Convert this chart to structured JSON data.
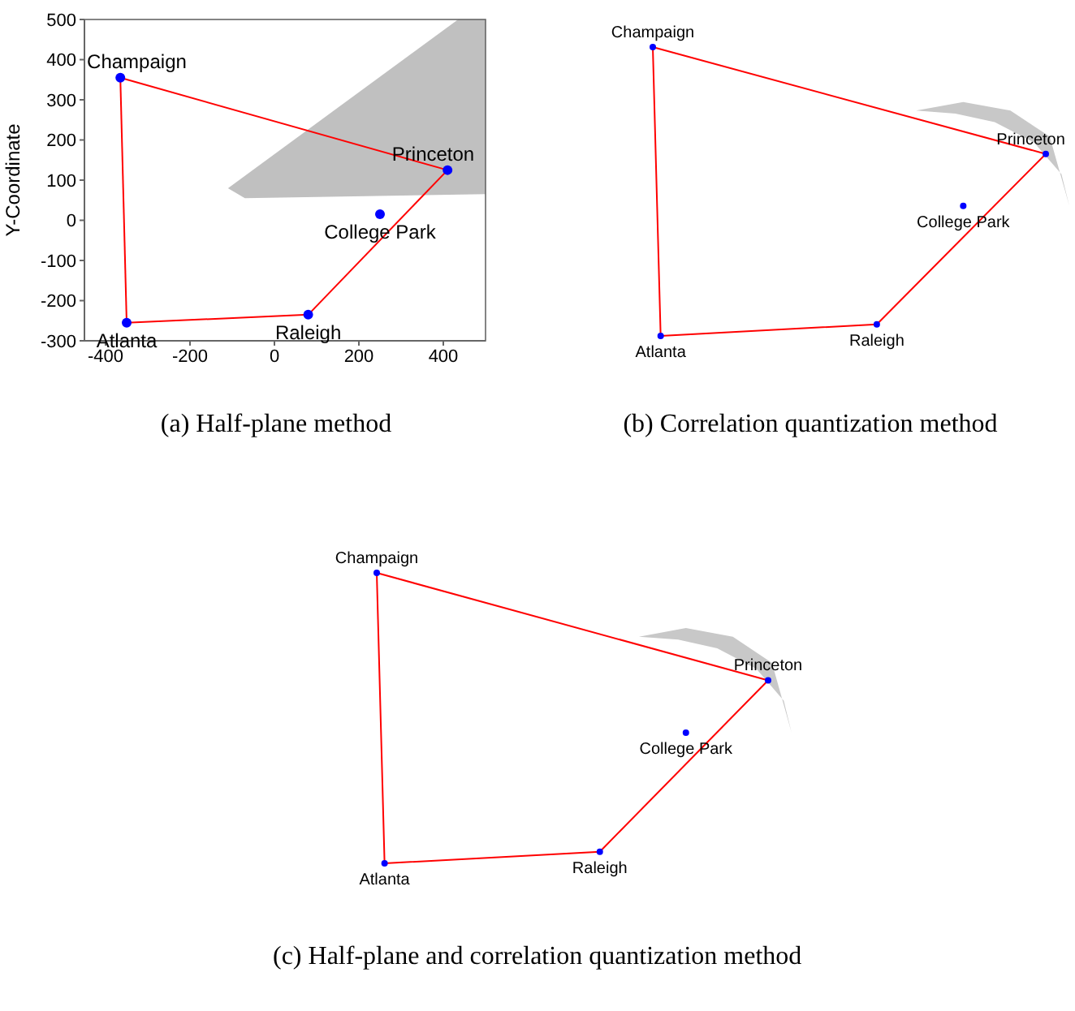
{
  "chart_data": [
    {
      "type": "line",
      "title": "(a) Half-plane method",
      "ylabel": "Y-Coordinate",
      "xlim": [
        -450,
        500
      ],
      "ylim": [
        -300,
        500
      ],
      "xticks": [
        -400,
        -200,
        0,
        200,
        400
      ],
      "yticks": [
        -300,
        -200,
        -100,
        0,
        100,
        200,
        300,
        400,
        500
      ],
      "series": [
        {
          "type": "area",
          "color": "#c0c0c0",
          "x": [
            -110,
            -70,
            500,
            500,
            435
          ],
          "values": [
            80,
            55,
            65,
            500,
            500
          ]
        },
        {
          "color": "#ff0000",
          "x": [
            -365,
            410
          ],
          "values": [
            355,
            125
          ]
        },
        {
          "color": "#ff0000",
          "x": [
            80,
            410
          ],
          "values": [
            -235,
            125
          ]
        },
        {
          "color": "#ff0000",
          "x": [
            -350,
            80
          ],
          "values": [
            -255,
            -235
          ]
        },
        {
          "color": "#ff0000",
          "x": [
            -365,
            -350
          ],
          "values": [
            355,
            -255
          ]
        },
        {
          "type": "scatter",
          "marker": "circle",
          "color": "#0000ff",
          "x": [
            -365,
            410,
            250,
            80,
            -350
          ],
          "values": [
            355,
            125,
            15,
            -235,
            -255
          ]
        }
      ],
      "annotations": [
        {
          "text": "Champaign",
          "x": -365,
          "y": 355
        },
        {
          "text": "Princeton",
          "x": 410,
          "y": 125
        },
        {
          "text": "College Park",
          "x": 250,
          "y": 15
        },
        {
          "text": "Raleigh",
          "x": 80,
          "y": -235
        },
        {
          "text": "Atlanta",
          "x": -350,
          "y": -255
        }
      ]
    },
    {
      "type": "other",
      "title": "(b) Correlation quantization method",
      "annotations": [
        "Champaign",
        "Princeton",
        "College Park",
        "Raleigh",
        "Atlanta"
      ]
    },
    {
      "type": "other",
      "title": "(c) Half-plane and correlation quantization method",
      "annotations": [
        "Champaign",
        "Princeton",
        "College Park",
        "Raleigh",
        "Atlanta"
      ]
    }
  ]
}
